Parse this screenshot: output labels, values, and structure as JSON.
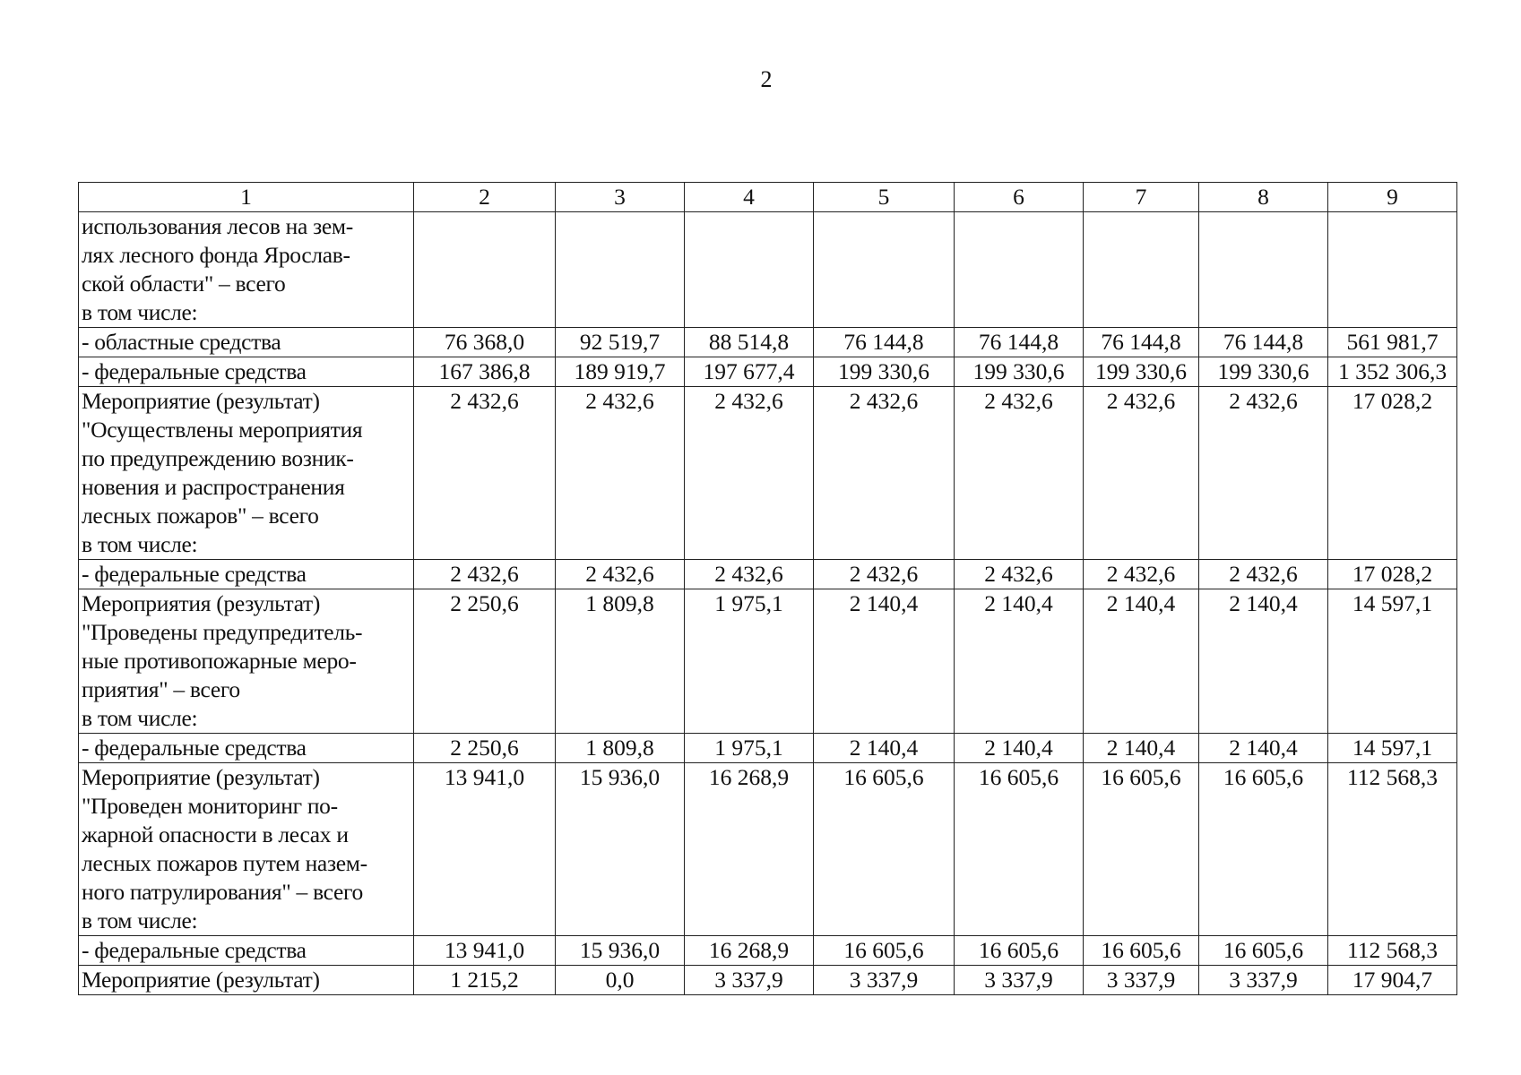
{
  "page_number": "2",
  "table": {
    "header": [
      "1",
      "2",
      "3",
      "4",
      "5",
      "6",
      "7",
      "8",
      "9"
    ],
    "rows": [
      {
        "label": "использования лесов на зем-\nлях лесного фонда Ярослав-\nской области\" – всего\nв том числе:",
        "values": [
          "",
          "",
          "",
          "",
          "",
          "",
          "",
          ""
        ]
      },
      {
        "label": "- областные средства",
        "values": [
          "76 368,0",
          "92 519,7",
          "88 514,8",
          "76 144,8",
          "76 144,8",
          "76 144,8",
          "76 144,8",
          "561 981,7"
        ]
      },
      {
        "label": "- федеральные средства",
        "values": [
          "167 386,8",
          "189 919,7",
          "197 677,4",
          "199 330,6",
          "199 330,6",
          "199 330,6",
          "199 330,6",
          "1 352 306,3"
        ]
      },
      {
        "label": "Мероприятие (результат)\n\"Осуществлены мероприятия\nпо предупреждению возник-\nновения и распространения\nлесных пожаров\" – всего\nв том числе:",
        "values": [
          "2 432,6",
          "2 432,6",
          "2 432,6",
          "2 432,6",
          "2 432,6",
          "2 432,6",
          "2 432,6",
          "17 028,2"
        ]
      },
      {
        "label": "- федеральные средства",
        "values": [
          "2 432,6",
          "2 432,6",
          "2 432,6",
          "2 432,6",
          "2 432,6",
          "2 432,6",
          "2 432,6",
          "17 028,2"
        ]
      },
      {
        "label": "Мероприятия (результат)\n\"Проведены предупредитель-\nные противопожарные меро-\nприятия\" – всего\nв том числе:",
        "values": [
          "2 250,6",
          "1 809,8",
          "1 975,1",
          "2 140,4",
          "2 140,4",
          "2 140,4",
          "2 140,4",
          "14 597,1"
        ]
      },
      {
        "label": "- федеральные средства",
        "values": [
          "2 250,6",
          "1 809,8",
          "1 975,1",
          "2 140,4",
          "2 140,4",
          "2 140,4",
          "2 140,4",
          "14 597,1"
        ]
      },
      {
        "label": "Мероприятие (результат)\n\"Проведен мониторинг по-\nжарной опасности в лесах и\nлесных пожаров путем назем-\nного патрулирования\" – всего\nв том числе:",
        "values": [
          "13 941,0",
          "15 936,0",
          "16 268,9",
          "16 605,6",
          "16 605,6",
          "16 605,6",
          "16 605,6",
          "112 568,3"
        ]
      },
      {
        "label": "- федеральные средства",
        "values": [
          "13 941,0",
          "15 936,0",
          "16 268,9",
          "16 605,6",
          "16 605,6",
          "16 605,6",
          "16 605,6",
          "112 568,3"
        ]
      },
      {
        "label": "Мероприятие (результат)",
        "values": [
          "1 215,2",
          "0,0",
          "3 337,9",
          "3 337,9",
          "3 337,9",
          "3 337,9",
          "3 337,9",
          "17 904,7"
        ]
      }
    ]
  }
}
